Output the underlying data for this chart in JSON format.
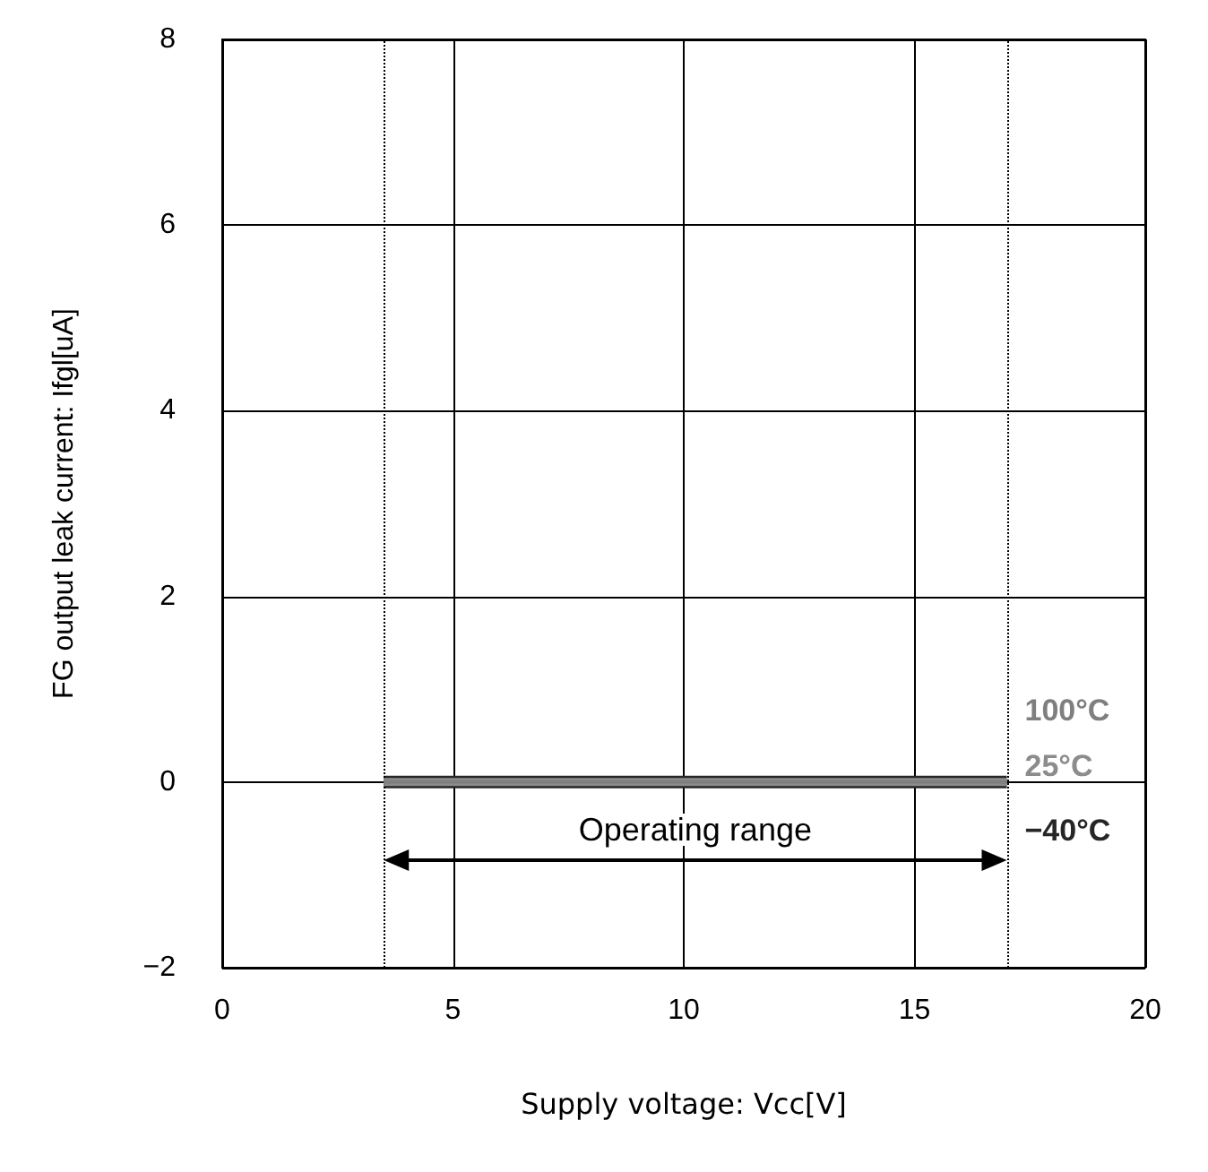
{
  "chart_data": {
    "type": "line",
    "xlabel": "Supply voltage: Vcc[V]",
    "ylabel": "FG output leak current: Ifgl[uA]",
    "xlim": [
      0,
      20
    ],
    "xticks": [
      0,
      5,
      10,
      15,
      20
    ],
    "ylim": [
      -2,
      8
    ],
    "yticks": [
      {
        "value": -2,
        "label": "−2"
      },
      0,
      2,
      4,
      6,
      8
    ],
    "x": [
      3.5,
      17
    ],
    "series": [
      {
        "name": "100°C",
        "color": "#7f7f7f",
        "values": [
          0,
          0
        ]
      },
      {
        "name": "25°C",
        "color": "#8c8c8c",
        "values": [
          0,
          0
        ]
      },
      {
        "name": "−40°C",
        "color": "#262626",
        "values": [
          0,
          0
        ]
      }
    ],
    "ref_lines": [
      {
        "axis": "x",
        "value": 3.5,
        "color": "#000000",
        "line_style": "dotted"
      },
      {
        "axis": "x",
        "value": 17,
        "color": "#000000",
        "line_style": "dotted"
      }
    ],
    "annotations": [
      "Operating range"
    ],
    "grid": true,
    "marker": "none",
    "line_style": "solid"
  }
}
